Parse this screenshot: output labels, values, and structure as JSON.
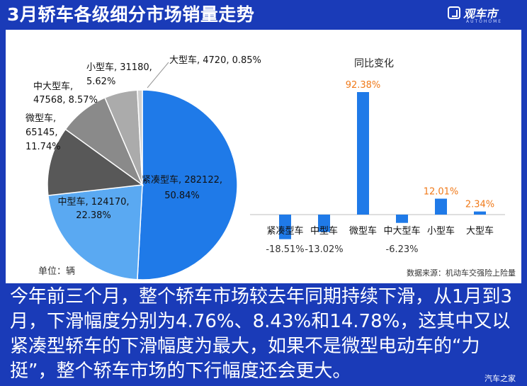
{
  "header": {
    "title": "3月轿车各级细分市场销量走势"
  },
  "brand": {
    "name": "观车市",
    "sub": "AUTOHOME"
  },
  "chart_data": [
    {
      "type": "pie",
      "unit_label": "单位：辆",
      "slices": [
        {
          "name": "紧凑型车",
          "value": 282122,
          "percent": "50.84%",
          "color": "#1f7ae8"
        },
        {
          "name": "中型车",
          "value": 124170,
          "percent": "22.38%",
          "color": "#5aa9f2"
        },
        {
          "name": "微型车",
          "value": 65145,
          "percent": "11.74%",
          "color": "#585858"
        },
        {
          "name": "中大型车",
          "value": 47568,
          "percent": "8.57%",
          "color": "#8a8a8a"
        },
        {
          "name": "小型车",
          "value": 31180,
          "percent": "5.62%",
          "color": "#ababab"
        },
        {
          "name": "大型车",
          "value": 4720,
          "percent": "0.85%",
          "color": "#d0d0d0"
        }
      ],
      "labels": [
        {
          "lines": [
            "紧凑型车, 282122,",
            "50.84%"
          ]
        },
        {
          "lines": [
            "中型车, 124170,",
            "22.38%"
          ]
        },
        {
          "lines": [
            "微型车,",
            "65145,",
            "11.74%"
          ]
        },
        {
          "lines": [
            "中大型车,",
            "47568, 8.57%"
          ]
        },
        {
          "lines": [
            "小型车, 31180,",
            "5.62%"
          ]
        },
        {
          "lines": [
            "大型车, 4720, 0.85%"
          ]
        }
      ]
    },
    {
      "type": "bar",
      "title": "同比变化",
      "categories": [
        "紧凑型车",
        "中型车",
        "微型车",
        "中大型车",
        "小型车",
        "大型车"
      ],
      "values": [
        -18.51,
        -13.02,
        92.38,
        -6.23,
        12.01,
        2.34
      ],
      "value_labels": [
        "-18.51%",
        "-13.02%",
        "92.38%",
        "-6.23%",
        "12.01%",
        "2.34%"
      ],
      "bar_color": "#1f7ae8",
      "positive_label_color": "#f07a1a",
      "negative_label_color": "#333333"
    }
  ],
  "source_note": "数据来源：机动车交强险上险量",
  "summary": "今年前三个月，整个轿车市场较去年同期持续下滑，从1月到3月，下滑幅度分别为4.76%、8.43%和14.78%，这其中又以紧凑型轿车的下滑幅度为最大，如果不是微型电动车的“力挺”，整个轿车市场的下行幅度还会更大。",
  "watermark": "汽车之家"
}
